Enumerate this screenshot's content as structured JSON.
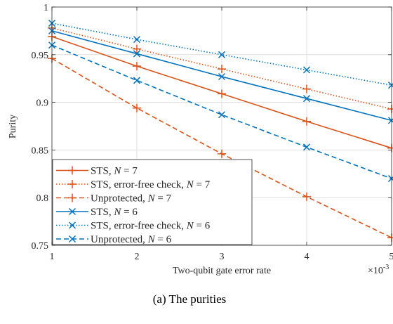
{
  "chart_data": {
    "type": "line",
    "xlabel": "Two-qubit gate error rate",
    "ylabel": "Purity",
    "x_exponent_label": "×10",
    "x_exponent_power": "-3",
    "xlim": [
      1,
      5
    ],
    "ylim": [
      0.75,
      1
    ],
    "x": [
      1,
      2,
      3,
      4,
      5
    ],
    "x_tick_labels": [
      "1",
      "2",
      "3",
      "4",
      "5"
    ],
    "y_ticks": [
      0.75,
      0.8,
      0.85,
      0.9,
      0.95,
      1
    ],
    "y_tick_labels": [
      "0.75",
      "0.8",
      "0.85",
      "0.9",
      "0.95",
      "1"
    ],
    "grid": true,
    "legend_position": "bottom-left",
    "series": [
      {
        "name": "STS, N = 7",
        "name_text": "STS, ",
        "name_var": "N",
        "name_rest": " = 7",
        "color": "#d95319",
        "line": "solid",
        "marker": "plus",
        "values": [
          0.969,
          0.938,
          0.909,
          0.88,
          0.852
        ]
      },
      {
        "name": "STS, error-free check, N = 7",
        "name_text": "STS, error-free check, ",
        "name_var": "N",
        "name_rest": " = 7",
        "color": "#d95319",
        "line": "dotted",
        "marker": "plus",
        "values": [
          0.978,
          0.956,
          0.935,
          0.914,
          0.893
        ]
      },
      {
        "name": "Unprotected, N = 7",
        "name_text": "Unprotected, ",
        "name_var": "N",
        "name_rest": " = 7",
        "color": "#d95319",
        "line": "dashed",
        "marker": "plus",
        "values": [
          0.946,
          0.894,
          0.846,
          0.801,
          0.758
        ]
      },
      {
        "name": "STS, N = 6",
        "name_text": "STS, ",
        "name_var": "N",
        "name_rest": " = 6",
        "color": "#0072bd",
        "line": "solid",
        "marker": "x",
        "values": [
          0.975,
          0.951,
          0.927,
          0.904,
          0.881
        ]
      },
      {
        "name": "STS, error-free check, N = 6",
        "name_text": "STS, error-free check, ",
        "name_var": "N",
        "name_rest": " = 6",
        "color": "#0072bd",
        "line": "dotted",
        "marker": "x",
        "values": [
          0.983,
          0.966,
          0.95,
          0.934,
          0.918
        ]
      },
      {
        "name": "Unprotected, N = 6",
        "name_text": "Unprotected, ",
        "name_var": "N",
        "name_rest": " = 6",
        "color": "#0072bd",
        "line": "dashed",
        "marker": "x",
        "values": [
          0.96,
          0.923,
          0.887,
          0.853,
          0.82
        ]
      }
    ]
  },
  "caption": "(a) The purities"
}
